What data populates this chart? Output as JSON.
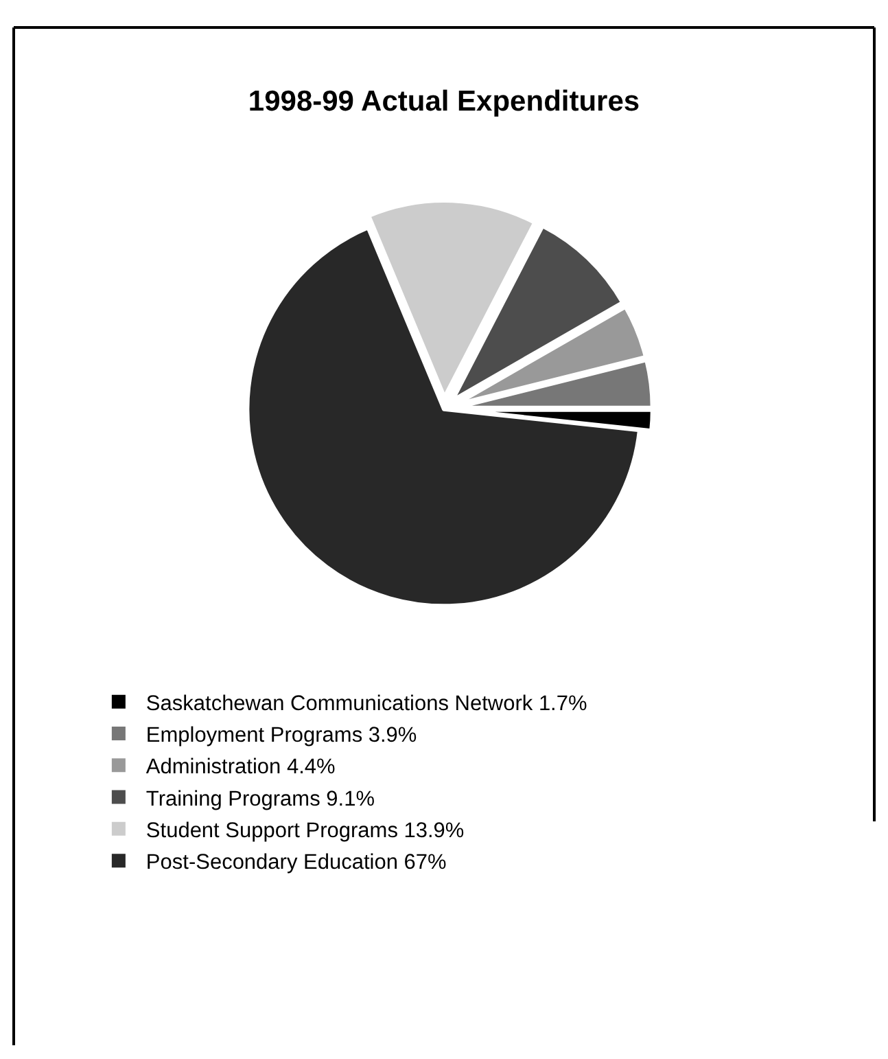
{
  "chart_data": {
    "type": "pie",
    "title": "1998-99 Actual Expenditures",
    "categories": [
      "Saskatchewan Communications Network 1.7%",
      "Employment Programs 3.9%",
      "Administration 4.4%",
      "Training Programs 9.1%",
      "Student Support Programs 13.9%",
      "Post-Secondary Education 67%"
    ],
    "values": [
      1.7,
      3.9,
      4.4,
      9.1,
      13.9,
      67
    ],
    "colors": [
      "#000000",
      "#777777",
      "#999999",
      "#4d4d4d",
      "#cccccc",
      "#282828"
    ],
    "legend": "bottom"
  }
}
